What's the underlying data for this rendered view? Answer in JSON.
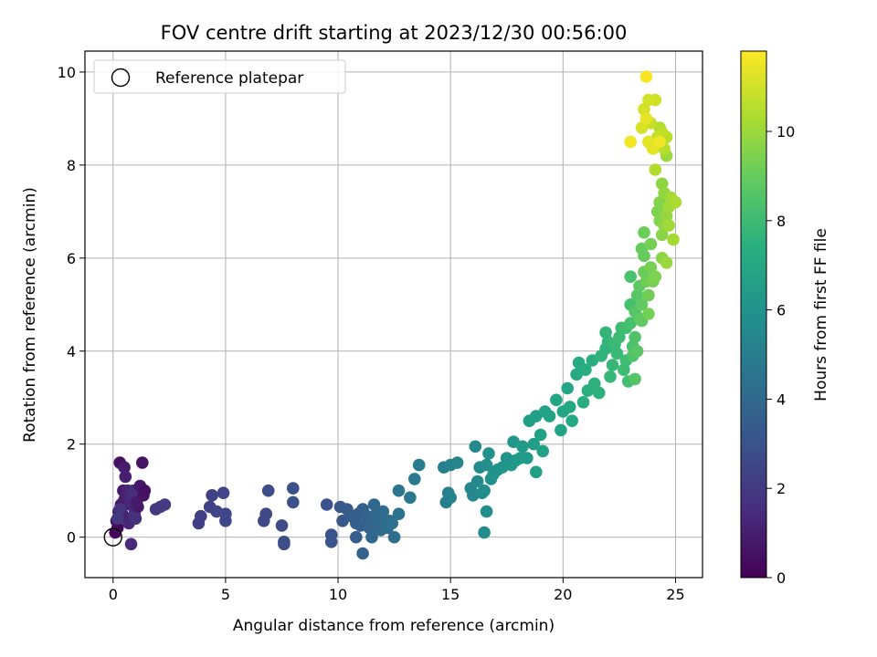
{
  "chart_data": {
    "type": "scatter",
    "title": "FOV centre drift starting at 2023/12/30 00:56:00",
    "xlabel": "Angular distance from reference (arcmin)",
    "ylabel": "Rotation from reference (arcmin)",
    "xlim": [
      -1.25,
      26.2
    ],
    "ylim": [
      -0.87,
      10.45
    ],
    "xticks": [
      0,
      5,
      10,
      15,
      20,
      25
    ],
    "yticks": [
      0,
      2,
      4,
      6,
      8,
      10
    ],
    "grid": true,
    "legend": {
      "position": "top-left",
      "entries": [
        {
          "label": "Reference platepar",
          "marker": "open-circle"
        }
      ]
    },
    "reference_point": {
      "x": 0,
      "y": 0
    },
    "colorbar": {
      "label": "Hours from first FF file",
      "colormap": "viridis",
      "range": [
        0,
        11.8
      ],
      "ticks": [
        0,
        2,
        4,
        6,
        8,
        10
      ]
    },
    "points": [
      [
        0.1,
        0.1,
        0.2
      ],
      [
        0.15,
        0.35,
        0.3
      ],
      [
        0.2,
        0.2,
        0.25
      ],
      [
        0.25,
        0.55,
        0.4
      ],
      [
        0.3,
        1.6,
        0.5
      ],
      [
        0.35,
        0.7,
        0.6
      ],
      [
        0.4,
        0.5,
        0.7
      ],
      [
        0.45,
        1.0,
        0.8
      ],
      [
        0.5,
        1.5,
        0.9
      ],
      [
        0.5,
        0.8,
        0.9
      ],
      [
        0.55,
        1.3,
        1.0
      ],
      [
        0.6,
        0.4,
        1.1
      ],
      [
        0.6,
        0.9,
        1.1
      ],
      [
        0.65,
        1.0,
        1.2
      ],
      [
        0.7,
        0.3,
        1.3
      ],
      [
        0.75,
        0.7,
        1.3
      ],
      [
        0.8,
        -0.15,
        1.4
      ],
      [
        0.85,
        0.9,
        1.5
      ],
      [
        0.9,
        1.0,
        1.5
      ],
      [
        0.95,
        0.5,
        1.6
      ],
      [
        1.0,
        0.9,
        1.6
      ],
      [
        1.05,
        0.75,
        0.9
      ],
      [
        1.1,
        0.65,
        0.8
      ],
      [
        1.2,
        1.1,
        0.7
      ],
      [
        1.3,
        1.6,
        0.6
      ],
      [
        1.35,
        0.9,
        0.6
      ],
      [
        1.4,
        1.0,
        0.5
      ],
      [
        1.0,
        0.4,
        1.7
      ],
      [
        0.3,
        0.6,
        1.8
      ],
      [
        0.2,
        0.4,
        1.9
      ],
      [
        1.9,
        0.6,
        1.9
      ],
      [
        2.1,
        0.65,
        2.0
      ],
      [
        2.3,
        0.7,
        2.0
      ],
      [
        3.8,
        0.3,
        2.1
      ],
      [
        3.9,
        0.45,
        2.2
      ],
      [
        4.3,
        0.65,
        2.3
      ],
      [
        4.4,
        0.9,
        2.3
      ],
      [
        4.6,
        0.55,
        2.4
      ],
      [
        4.9,
        0.95,
        2.4
      ],
      [
        5.0,
        0.5,
        2.5
      ],
      [
        5.0,
        0.35,
        2.5
      ],
      [
        6.7,
        0.35,
        2.6
      ],
      [
        6.8,
        0.5,
        2.6
      ],
      [
        6.9,
        1.0,
        2.7
      ],
      [
        7.5,
        0.25,
        2.7
      ],
      [
        7.6,
        -0.1,
        2.8
      ],
      [
        7.6,
        -0.15,
        2.8
      ],
      [
        8.0,
        1.05,
        2.9
      ],
      [
        8.0,
        0.75,
        2.9
      ],
      [
        9.5,
        0.7,
        3.0
      ],
      [
        9.7,
        0.05,
        3.1
      ],
      [
        9.7,
        -0.1,
        3.1
      ],
      [
        10.1,
        0.65,
        3.2
      ],
      [
        10.2,
        0.35,
        3.2
      ],
      [
        10.4,
        0.6,
        3.3
      ],
      [
        10.6,
        0.45,
        3.4
      ],
      [
        10.8,
        0.3,
        3.4
      ],
      [
        10.8,
        0.0,
        3.5
      ],
      [
        10.9,
        0.5,
        3.5
      ],
      [
        11.0,
        0.25,
        3.6
      ],
      [
        11.1,
        0.6,
        3.6
      ],
      [
        11.1,
        -0.35,
        3.7
      ],
      [
        11.3,
        0.45,
        3.7
      ],
      [
        11.4,
        0.2,
        3.8
      ],
      [
        11.5,
        0.35,
        3.8
      ],
      [
        11.5,
        0.0,
        3.9
      ],
      [
        11.6,
        0.7,
        3.9
      ],
      [
        11.7,
        0.5,
        4.0
      ],
      [
        11.8,
        0.3,
        4.0
      ],
      [
        11.9,
        0.15,
        4.1
      ],
      [
        12.0,
        0.55,
        4.1
      ],
      [
        12.1,
        0.35,
        4.2
      ],
      [
        12.2,
        0.2,
        4.2
      ],
      [
        12.3,
        0.35,
        4.3
      ],
      [
        12.5,
        0.0,
        4.3
      ],
      [
        12.4,
        0.3,
        4.4
      ],
      [
        12.7,
        0.5,
        4.5
      ],
      [
        12.7,
        1.0,
        4.6
      ],
      [
        13.2,
        0.85,
        4.7
      ],
      [
        13.4,
        1.25,
        4.8
      ],
      [
        13.6,
        1.55,
        4.9
      ],
      [
        14.7,
        1.5,
        5.0
      ],
      [
        14.8,
        0.75,
        5.0
      ],
      [
        14.9,
        0.95,
        5.1
      ],
      [
        15.0,
        0.85,
        5.2
      ],
      [
        15.0,
        1.55,
        5.2
      ],
      [
        15.3,
        1.6,
        5.3
      ],
      [
        15.9,
        1.05,
        5.4
      ],
      [
        16.0,
        0.9,
        5.4
      ],
      [
        16.1,
        1.95,
        5.5
      ],
      [
        16.2,
        1.2,
        5.5
      ],
      [
        16.3,
        1.5,
        5.6
      ],
      [
        16.4,
        0.95,
        5.6
      ],
      [
        16.5,
        0.1,
        5.7
      ],
      [
        16.5,
        1.0,
        5.7
      ],
      [
        16.6,
        1.55,
        5.8
      ],
      [
        16.6,
        0.55,
        5.8
      ],
      [
        16.7,
        1.8,
        5.9
      ],
      [
        16.8,
        1.25,
        5.9
      ],
      [
        16.9,
        1.35,
        6.0
      ],
      [
        17.1,
        1.45,
        6.0
      ],
      [
        17.3,
        1.5,
        6.1
      ],
      [
        17.5,
        1.7,
        6.1
      ],
      [
        17.7,
        1.55,
        6.2
      ],
      [
        17.8,
        2.05,
        6.2
      ],
      [
        17.9,
        1.65,
        6.3
      ],
      [
        18.1,
        1.7,
        6.3
      ],
      [
        18.2,
        1.95,
        6.4
      ],
      [
        18.4,
        1.7,
        6.4
      ],
      [
        18.5,
        2.5,
        6.5
      ],
      [
        18.7,
        2.0,
        6.5
      ],
      [
        18.8,
        1.4,
        6.6
      ],
      [
        18.8,
        2.6,
        6.6
      ],
      [
        19.0,
        2.2,
        6.7
      ],
      [
        19.1,
        1.85,
        6.7
      ],
      [
        19.2,
        2.7,
        6.8
      ],
      [
        19.4,
        2.6,
        6.8
      ],
      [
        19.7,
        2.95,
        6.9
      ],
      [
        19.9,
        2.3,
        6.9
      ],
      [
        20.0,
        2.7,
        7.0
      ],
      [
        20.2,
        3.2,
        7.0
      ],
      [
        20.3,
        2.8,
        7.1
      ],
      [
        20.4,
        2.5,
        7.1
      ],
      [
        20.6,
        3.5,
        7.2
      ],
      [
        20.7,
        3.75,
        7.2
      ],
      [
        20.9,
        2.9,
        7.3
      ],
      [
        21.0,
        3.6,
        7.3
      ],
      [
        21.1,
        3.15,
        7.4
      ],
      [
        21.3,
        3.8,
        7.4
      ],
      [
        21.4,
        3.3,
        7.5
      ],
      [
        21.6,
        3.1,
        7.5
      ],
      [
        21.7,
        3.9,
        7.6
      ],
      [
        21.9,
        4.05,
        7.6
      ],
      [
        21.9,
        4.4,
        7.7
      ],
      [
        22.0,
        4.2,
        7.7
      ],
      [
        22.1,
        3.45,
        7.8
      ],
      [
        22.2,
        3.7,
        7.8
      ],
      [
        22.3,
        4.15,
        7.9
      ],
      [
        22.4,
        3.95,
        7.9
      ],
      [
        22.5,
        4.3,
        8.0
      ],
      [
        22.6,
        4.5,
        8.0
      ],
      [
        22.7,
        3.6,
        8.1
      ],
      [
        22.8,
        3.8,
        8.1
      ],
      [
        22.8,
        4.5,
        8.2
      ],
      [
        22.9,
        3.35,
        8.2
      ],
      [
        23.0,
        4.6,
        8.3
      ],
      [
        23.0,
        5.0,
        8.3
      ],
      [
        23.0,
        5.6,
        8.4
      ],
      [
        23.1,
        4.1,
        8.4
      ],
      [
        23.1,
        3.9,
        8.5
      ],
      [
        23.2,
        4.3,
        8.5
      ],
      [
        23.2,
        4.85,
        8.6
      ],
      [
        23.2,
        3.4,
        8.6
      ],
      [
        23.3,
        5.2,
        8.7
      ],
      [
        23.3,
        4.0,
        8.7
      ],
      [
        23.4,
        4.7,
        8.8
      ],
      [
        23.4,
        5.4,
        8.8
      ],
      [
        23.5,
        5.0,
        8.9
      ],
      [
        23.5,
        4.65,
        8.9
      ],
      [
        23.5,
        6.2,
        9.0
      ],
      [
        23.6,
        6.05,
        9.0
      ],
      [
        23.6,
        6.55,
        9.1
      ],
      [
        23.6,
        5.7,
        9.1
      ],
      [
        23.7,
        5.5,
        9.2
      ],
      [
        23.8,
        5.2,
        9.2
      ],
      [
        23.8,
        4.8,
        9.3
      ],
      [
        23.9,
        6.3,
        9.3
      ],
      [
        23.9,
        5.8,
        9.4
      ],
      [
        24.0,
        5.5,
        9.4
      ],
      [
        24.1,
        5.6,
        9.5
      ],
      [
        24.2,
        7.0,
        9.5
      ],
      [
        24.3,
        7.2,
        9.6
      ],
      [
        24.3,
        6.8,
        9.6
      ],
      [
        24.4,
        6.0,
        9.7
      ],
      [
        24.4,
        6.5,
        9.7
      ],
      [
        24.4,
        7.6,
        9.8
      ],
      [
        24.5,
        6.7,
        9.8
      ],
      [
        24.5,
        7.4,
        9.9
      ],
      [
        24.6,
        6.9,
        9.9
      ],
      [
        24.6,
        8.2,
        10.0
      ],
      [
        24.6,
        5.9,
        10.0
      ],
      [
        24.7,
        7.1,
        10.1
      ],
      [
        24.7,
        6.7,
        10.1
      ],
      [
        24.8,
        7.3,
        10.2
      ],
      [
        24.9,
        6.4,
        10.2
      ],
      [
        25.0,
        7.2,
        10.3
      ],
      [
        24.1,
        7.9,
        10.4
      ],
      [
        24.3,
        8.8,
        10.4
      ],
      [
        24.5,
        8.35,
        10.5
      ],
      [
        24.6,
        8.6,
        10.5
      ],
      [
        24.4,
        8.7,
        10.6
      ],
      [
        24.2,
        8.6,
        10.7
      ],
      [
        24.0,
        8.4,
        10.8
      ],
      [
        23.9,
        8.9,
        10.8
      ],
      [
        24.1,
        9.4,
        10.9
      ],
      [
        23.8,
        9.4,
        11.0
      ],
      [
        23.6,
        9.2,
        11.0
      ],
      [
        23.5,
        8.8,
        11.1
      ],
      [
        23.9,
        8.45,
        11.2
      ],
      [
        23.8,
        8.5,
        11.3
      ],
      [
        24.0,
        8.35,
        11.3
      ],
      [
        23.7,
        9.0,
        11.4
      ],
      [
        24.3,
        8.5,
        11.5
      ],
      [
        23.0,
        8.5,
        11.6
      ],
      [
        23.7,
        9.9,
        11.7
      ]
    ]
  }
}
